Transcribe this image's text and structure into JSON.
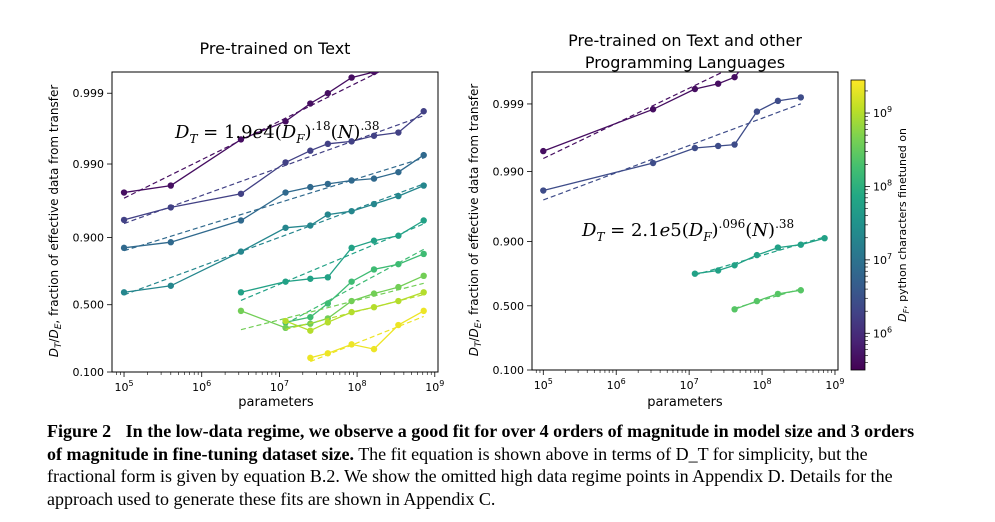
{
  "figure": {
    "caption_label": "Figure 2",
    "caption_bold": "In the low-data regime, we observe a good fit for over 4 orders of magnitude in model size and 3 orders of magnitude in fine-tuning dataset size.",
    "caption_rest": " The fit equation is shown above in terms of D_T for simplicity, but the fractional form is given by equation B.2. We show the omitted high data regime points in Appendix D. Details for the approach used to generate these fits are shown in Appendix C."
  },
  "colorbar": {
    "label": "D_F, python characters finetuned on",
    "ticks": [
      6,
      7,
      8,
      9
    ],
    "range_log": [
      5.5,
      9.45
    ],
    "colormap": "viridis"
  },
  "chart_data": [
    {
      "type": "line",
      "title": "Pre-trained on Text",
      "xlabel": "parameters",
      "ylabel": "D_T/D_E, fraction of effective data from transfer",
      "x_scale": "log",
      "y_scale": "logit",
      "xlim": [
        70000,
        1100000000
      ],
      "ylim_logit": [
        -2.197,
        7.6
      ],
      "x_ticks": [
        100000,
        1000000,
        10000000,
        100000000,
        1000000000
      ],
      "y_ticks": [
        0.1,
        0.5,
        0.9,
        0.99,
        0.999
      ],
      "y_tick_labels": [
        "0.100",
        "0.500",
        "0.900",
        "0.990",
        "0.999"
      ],
      "annotation": "D_T = 1.9e4(D_F)^.18(N)^.38",
      "series": [
        {
          "d_f_log": 5.65,
          "x": [
            100000,
            400000,
            3200000,
            12000000,
            25000000,
            42000000,
            85000000,
            165000000,
            340000000,
            720000000
          ],
          "y": [
            0.975,
            0.98,
            0.9955,
            0.9975,
            0.9986,
            0.999,
            0.9994,
            0.9995,
            0.9996,
            0.9997
          ]
        },
        {
          "d_f_log": 6.25,
          "x": [
            100000,
            400000,
            3200000,
            12000000,
            25000000,
            42000000,
            85000000,
            165000000,
            340000000,
            720000000
          ],
          "y": [
            0.941,
            0.96,
            0.974,
            0.9905,
            0.9935,
            0.9948,
            0.9952,
            0.996,
            0.9964,
            0.9982
          ]
        },
        {
          "d_f_log": 6.85,
          "x": [
            100000,
            400000,
            3200000,
            12000000,
            25000000,
            42000000,
            85000000,
            165000000,
            340000000,
            720000000
          ],
          "y": [
            0.865,
            0.885,
            0.94,
            0.975,
            0.979,
            0.981,
            0.983,
            0.984,
            0.987,
            0.9925
          ]
        },
        {
          "d_f_log": 7.3,
          "x": [
            100000,
            400000,
            3200000,
            12000000,
            25000000,
            42000000,
            85000000,
            165000000,
            340000000,
            720000000
          ],
          "y": [
            0.6,
            0.65,
            0.85,
            0.925,
            0.93,
            0.95,
            0.955,
            0.964,
            0.972,
            0.98
          ]
        },
        {
          "d_f_log": 7.75,
          "x": [
            3200000,
            12000000,
            25000000,
            42000000,
            85000000,
            165000000,
            340000000,
            720000000
          ],
          "y": [
            0.6,
            0.68,
            0.7,
            0.71,
            0.865,
            0.89,
            0.905,
            0.94
          ]
        },
        {
          "d_f_log": 8.2,
          "x": [
            12000000,
            25000000,
            42000000,
            85000000,
            165000000,
            340000000,
            720000000
          ],
          "y": [
            0.36,
            0.4,
            0.51,
            0.68,
            0.76,
            0.79,
            0.84
          ]
        },
        {
          "d_f_log": 8.6,
          "x": [
            3200000,
            12000000,
            25000000,
            42000000,
            85000000,
            165000000,
            340000000,
            720000000
          ],
          "y": [
            0.45,
            0.32,
            0.35,
            0.39,
            0.53,
            0.59,
            0.64,
            0.72
          ]
        },
        {
          "d_f_log": 9.0,
          "x": [
            12000000,
            25000000,
            42000000,
            85000000,
            165000000,
            340000000,
            720000000
          ],
          "y": [
            0.37,
            0.3,
            0.36,
            0.44,
            0.48,
            0.53,
            0.6
          ]
        },
        {
          "d_f_log": 9.35,
          "x": [
            25000000,
            42000000,
            85000000,
            165000000,
            340000000,
            720000000
          ],
          "y": [
            0.15,
            0.17,
            0.215,
            0.19,
            0.34,
            0.45
          ]
        }
      ]
    },
    {
      "type": "line",
      "title": "Pre-trained on Text and other Programming Languages",
      "xlabel": "parameters",
      "ylabel": "D_T/D_E, fraction of effective data from transfer",
      "x_scale": "log",
      "y_scale": "logit",
      "xlim": [
        70000,
        1100000000
      ],
      "ylim_logit": [
        -2.197,
        8.0
      ],
      "x_ticks": [
        100000,
        1000000,
        10000000,
        100000000,
        1000000000
      ],
      "y_ticks": [
        0.1,
        0.5,
        0.9,
        0.99,
        0.999
      ],
      "y_tick_labels": [
        "0.100",
        "0.500",
        "0.900",
        "0.990",
        "0.999"
      ],
      "annotation": "D_T = 2.1e5(D_F)^.096(N)^.38",
      "series": [
        {
          "d_f_log": 5.65,
          "x": [
            100000,
            3200000,
            12000000,
            25000000,
            42000000,
            85000000,
            165000000,
            340000000
          ],
          "y": [
            0.995,
            0.9988,
            0.9994,
            0.9995,
            0.9996,
            0.99985,
            0.9999,
            0.99992
          ]
        },
        {
          "d_f_log": 6.4,
          "x": [
            100000,
            3200000,
            12000000,
            25000000,
            42000000,
            85000000,
            165000000,
            340000000
          ],
          "y": [
            0.981,
            0.9925,
            0.9955,
            0.9958,
            0.996,
            0.9987,
            0.9991,
            0.9992
          ]
        },
        {
          "d_f_log": 7.75,
          "x": [
            12000000,
            25000000,
            42000000,
            85000000,
            165000000,
            340000000,
            720000000
          ],
          "y": [
            0.75,
            0.77,
            0.8,
            0.85,
            0.88,
            0.89,
            0.91
          ]
        },
        {
          "d_f_log": 8.4,
          "x": [
            42000000,
            85000000,
            165000000,
            340000000
          ],
          "y": [
            0.47,
            0.54,
            0.6,
            0.63
          ]
        }
      ]
    }
  ]
}
